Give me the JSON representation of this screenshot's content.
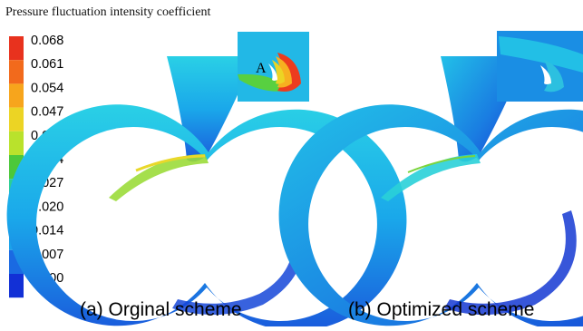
{
  "legend": {
    "title": "Pressure fluctuation intensity coefficient",
    "ticks": [
      "0.068",
      "0.061",
      "0.054",
      "0.047",
      "0.041",
      "0.034",
      "0.027",
      "0.020",
      "0.014",
      "0.007",
      "0.000"
    ],
    "colors": [
      "#e8321e",
      "#f26a1c",
      "#f7a51c",
      "#ecd424",
      "#b9e22c",
      "#4cc83a",
      "#2ccf94",
      "#18c8dc",
      "#1aa2ea",
      "#1a6ae2",
      "#1230d6"
    ]
  },
  "panels": [
    {
      "caption": "(a) Orginal scheme",
      "annotation": "A"
    },
    {
      "caption": "(b) Optimized scheme"
    }
  ]
}
